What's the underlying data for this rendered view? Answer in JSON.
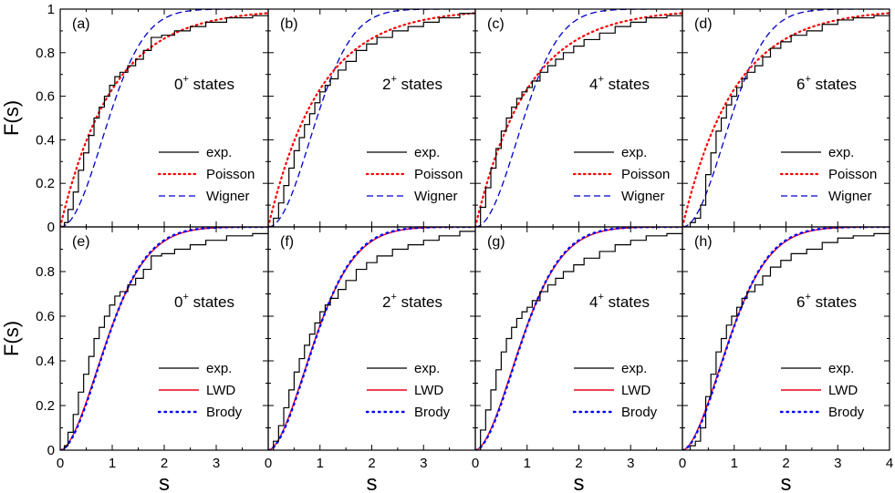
{
  "figure": {
    "ylabel": "F(s)",
    "xlabel": "s",
    "xlim": [
      0,
      4
    ],
    "ylim": [
      0,
      1
    ],
    "x_ticks": [
      0,
      1,
      2,
      3,
      4
    ],
    "x_tick_labels_inner": [
      "0",
      "1",
      "2",
      "3"
    ],
    "x_tick_labels_last": [
      "0",
      "1",
      "2",
      "3",
      "4"
    ],
    "y_ticks": [
      0,
      0.2,
      0.4,
      0.6,
      0.8,
      1
    ],
    "y_tick_labels_top": [
      "0",
      "0.2",
      "0.4",
      "0.6",
      "0.8",
      "1"
    ],
    "y_tick_labels_bottom": [
      "0",
      "0.2",
      "0.4",
      "0.6",
      "0.8"
    ]
  },
  "colors": {
    "exp": "#000000",
    "poisson": "#ff0000",
    "wigner": "#0000cc",
    "lwd": "#e8001c",
    "brody": "#0000ff"
  },
  "chart_data": [
    {
      "type": "line",
      "panel": "(a)",
      "state_base": "0",
      "state_sup": "+",
      "state_suffix": " states",
      "legend": [
        {
          "key": "exp",
          "label": "exp."
        },
        {
          "key": "poisson",
          "label": "Poisson"
        },
        {
          "key": "wigner",
          "label": "Wigner"
        }
      ],
      "exp": {
        "x": [
          0,
          0.08,
          0.15,
          0.25,
          0.35,
          0.45,
          0.55,
          0.65,
          0.75,
          0.85,
          0.95,
          1.05,
          1.15,
          1.3,
          1.45,
          1.6,
          1.75,
          1.95,
          2.2,
          2.5,
          2.8,
          3.2,
          3.7,
          4.0
        ],
        "y": [
          0,
          0.02,
          0.08,
          0.16,
          0.26,
          0.34,
          0.42,
          0.5,
          0.55,
          0.6,
          0.65,
          0.69,
          0.71,
          0.74,
          0.77,
          0.81,
          0.87,
          0.88,
          0.9,
          0.92,
          0.94,
          0.96,
          0.97,
          0.97
        ]
      }
    },
    {
      "type": "line",
      "panel": "(b)",
      "state_base": "2",
      "state_sup": "+",
      "state_suffix": " states",
      "legend": [
        {
          "key": "exp",
          "label": "exp."
        },
        {
          "key": "poisson",
          "label": "Poisson"
        },
        {
          "key": "wigner",
          "label": "Wigner"
        }
      ],
      "exp": {
        "x": [
          0,
          0.1,
          0.2,
          0.3,
          0.4,
          0.5,
          0.6,
          0.7,
          0.8,
          0.9,
          1.0,
          1.1,
          1.2,
          1.35,
          1.5,
          1.7,
          1.9,
          2.1,
          2.4,
          2.7,
          3.0,
          3.3,
          3.7,
          4.0
        ],
        "y": [
          0,
          0.04,
          0.11,
          0.19,
          0.27,
          0.35,
          0.41,
          0.47,
          0.52,
          0.57,
          0.62,
          0.65,
          0.68,
          0.72,
          0.76,
          0.81,
          0.84,
          0.87,
          0.9,
          0.92,
          0.94,
          0.96,
          0.98,
          0.98
        ]
      }
    },
    {
      "type": "line",
      "panel": "(c)",
      "state_base": "4",
      "state_sup": "+",
      "state_suffix": " states",
      "legend": [
        {
          "key": "exp",
          "label": "exp."
        },
        {
          "key": "poisson",
          "label": "Poisson"
        },
        {
          "key": "wigner",
          "label": "Wigner"
        }
      ],
      "exp": {
        "x": [
          0,
          0.1,
          0.2,
          0.3,
          0.4,
          0.5,
          0.6,
          0.7,
          0.8,
          0.9,
          1.0,
          1.1,
          1.25,
          1.4,
          1.55,
          1.7,
          1.9,
          2.1,
          2.4,
          2.7,
          3.0,
          3.3,
          3.7,
          4.0
        ],
        "y": [
          0,
          0.09,
          0.18,
          0.27,
          0.36,
          0.44,
          0.5,
          0.55,
          0.59,
          0.62,
          0.64,
          0.67,
          0.71,
          0.74,
          0.77,
          0.8,
          0.83,
          0.86,
          0.89,
          0.92,
          0.94,
          0.96,
          0.97,
          0.98
        ]
      }
    },
    {
      "type": "line",
      "panel": "(d)",
      "state_base": "6",
      "state_sup": "+",
      "state_suffix": " states",
      "legend": [
        {
          "key": "exp",
          "label": "exp."
        },
        {
          "key": "poisson",
          "label": "Poisson"
        },
        {
          "key": "wigner",
          "label": "Wigner"
        }
      ],
      "exp": {
        "x": [
          0,
          0.15,
          0.25,
          0.35,
          0.45,
          0.55,
          0.65,
          0.75,
          0.85,
          0.95,
          1.05,
          1.15,
          1.25,
          1.4,
          1.55,
          1.7,
          1.9,
          2.1,
          2.4,
          2.7,
          3.0,
          3.3,
          3.7,
          4.0
        ],
        "y": [
          0,
          0.02,
          0.04,
          0.1,
          0.24,
          0.34,
          0.44,
          0.5,
          0.56,
          0.6,
          0.64,
          0.68,
          0.71,
          0.74,
          0.78,
          0.82,
          0.85,
          0.88,
          0.9,
          0.93,
          0.95,
          0.96,
          0.97,
          0.98
        ]
      }
    },
    {
      "type": "line",
      "panel": "(e)",
      "state_base": "0",
      "state_sup": "+",
      "state_suffix": " states",
      "legend": [
        {
          "key": "exp",
          "label": "exp."
        },
        {
          "key": "lwd",
          "label": "LWD"
        },
        {
          "key": "brody",
          "label": "Brody"
        }
      ],
      "exp": {
        "x": [
          0,
          0.08,
          0.15,
          0.25,
          0.35,
          0.45,
          0.55,
          0.65,
          0.75,
          0.85,
          0.95,
          1.05,
          1.15,
          1.3,
          1.45,
          1.6,
          1.75,
          1.95,
          2.2,
          2.5,
          2.8,
          3.2,
          3.7,
          4.0
        ],
        "y": [
          0,
          0.02,
          0.08,
          0.16,
          0.26,
          0.34,
          0.42,
          0.5,
          0.55,
          0.6,
          0.65,
          0.69,
          0.71,
          0.74,
          0.77,
          0.81,
          0.87,
          0.88,
          0.9,
          0.92,
          0.94,
          0.96,
          0.97,
          0.97
        ]
      }
    },
    {
      "type": "line",
      "panel": "(f)",
      "state_base": "2",
      "state_sup": "+",
      "state_suffix": " states",
      "legend": [
        {
          "key": "exp",
          "label": "exp."
        },
        {
          "key": "lwd",
          "label": "LWD"
        },
        {
          "key": "brody",
          "label": "Brody"
        }
      ],
      "exp": {
        "x": [
          0,
          0.1,
          0.2,
          0.3,
          0.4,
          0.5,
          0.6,
          0.7,
          0.8,
          0.9,
          1.0,
          1.1,
          1.2,
          1.35,
          1.5,
          1.7,
          1.9,
          2.1,
          2.4,
          2.7,
          3.0,
          3.3,
          3.7,
          4.0
        ],
        "y": [
          0,
          0.04,
          0.11,
          0.19,
          0.27,
          0.35,
          0.41,
          0.47,
          0.52,
          0.57,
          0.62,
          0.65,
          0.68,
          0.72,
          0.76,
          0.81,
          0.84,
          0.87,
          0.9,
          0.92,
          0.94,
          0.96,
          0.98,
          0.98
        ]
      }
    },
    {
      "type": "line",
      "panel": "(g)",
      "state_base": "4",
      "state_sup": "+",
      "state_suffix": " states",
      "legend": [
        {
          "key": "exp",
          "label": "exp."
        },
        {
          "key": "lwd",
          "label": "LWD"
        },
        {
          "key": "brody",
          "label": "Brody"
        }
      ],
      "exp": {
        "x": [
          0,
          0.1,
          0.2,
          0.3,
          0.4,
          0.5,
          0.6,
          0.7,
          0.8,
          0.9,
          1.0,
          1.1,
          1.25,
          1.4,
          1.55,
          1.7,
          1.9,
          2.1,
          2.4,
          2.7,
          3.0,
          3.3,
          3.7,
          4.0
        ],
        "y": [
          0,
          0.09,
          0.18,
          0.27,
          0.36,
          0.44,
          0.5,
          0.55,
          0.59,
          0.62,
          0.64,
          0.67,
          0.71,
          0.74,
          0.77,
          0.8,
          0.83,
          0.86,
          0.89,
          0.92,
          0.94,
          0.96,
          0.97,
          0.98
        ]
      }
    },
    {
      "type": "line",
      "panel": "(h)",
      "state_base": "6",
      "state_sup": "+",
      "state_suffix": " states",
      "legend": [
        {
          "key": "exp",
          "label": "exp."
        },
        {
          "key": "lwd",
          "label": "LWD"
        },
        {
          "key": "brody",
          "label": "Brody"
        }
      ],
      "exp": {
        "x": [
          0,
          0.15,
          0.25,
          0.35,
          0.45,
          0.55,
          0.65,
          0.75,
          0.85,
          0.95,
          1.05,
          1.15,
          1.25,
          1.4,
          1.55,
          1.7,
          1.9,
          2.1,
          2.4,
          2.7,
          3.0,
          3.3,
          3.7,
          4.0
        ],
        "y": [
          0,
          0.02,
          0.04,
          0.1,
          0.24,
          0.34,
          0.44,
          0.5,
          0.56,
          0.6,
          0.64,
          0.68,
          0.71,
          0.74,
          0.78,
          0.82,
          0.85,
          0.88,
          0.9,
          0.93,
          0.95,
          0.96,
          0.97,
          0.98
        ]
      }
    }
  ]
}
